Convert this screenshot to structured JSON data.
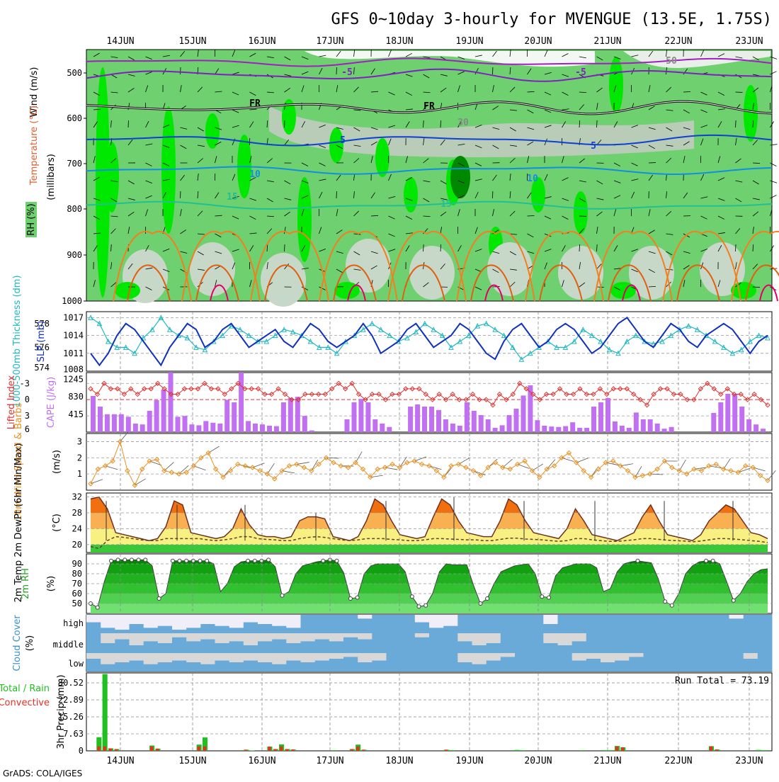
{
  "title": "GFS 0~10day 3-hourly for MVENGUE (13.5E, 1.75S)",
  "footer": "GrADS: COLA/IGES",
  "dates": [
    "14JUN",
    "15JUN",
    "16JUN",
    "17JUN",
    "18JUN",
    "19JUN",
    "20JUN",
    "21JUN",
    "22JUN",
    "23JUN"
  ],
  "colors": {
    "rh_dark": "#00c800",
    "rh_mid": "#6fd06f",
    "rh_light": "#c8d8c8",
    "temp_red": "#e00000",
    "slp": "#1030c0",
    "thick": "#20b8c0",
    "cape": "#c070f0",
    "li": "#e03030",
    "wind10": "#e89020",
    "cloud": "#6aaad8",
    "precip": "#20c020",
    "precip_conv": "#e83020"
  },
  "panels": {
    "upper": {
      "ylabel": "(millibars)",
      "rh_label": "RH (%)",
      "temp_label": "Temperature (°C)",
      "wind_label": "Wind (m/s)",
      "levels": [
        "500",
        "600",
        "700",
        "800",
        "900",
        "1000"
      ],
      "contour_labels": [
        "-5",
        "FR",
        "5",
        "10",
        "15",
        "30",
        "50"
      ]
    },
    "slp": {
      "label_slp": "SLP (mb)",
      "label_thick": "1000-500mb Thickness (dm)",
      "slp_ticks": [
        "1017",
        "1014",
        "1011",
        "1008"
      ],
      "thick_ticks": [
        "578",
        "576",
        "574"
      ]
    },
    "cape": {
      "label_li": "Lifted Index",
      "label_cape": "CAPE (J/kg)",
      "li_ticks": [
        "-3",
        "0",
        "3",
        "6"
      ],
      "cape_ticks": [
        "1245",
        "830",
        "415"
      ]
    },
    "wind": {
      "label": "10m Wind Speed & Barbs",
      "unit": "(m/s)",
      "ticks": [
        "3",
        "2",
        "1"
      ]
    },
    "temp": {
      "label": "2m Temp 2m DewPt (6hr Min/Max)",
      "unit": "(°C)",
      "ticks": [
        "32",
        "28",
        "24",
        "20"
      ]
    },
    "rh": {
      "label": "2m RH",
      "unit": "(%)",
      "ticks": [
        "90",
        "80",
        "70",
        "60",
        "50"
      ]
    },
    "cloud": {
      "label": "Cloud Cover",
      "unit": "(%)",
      "levels": [
        "high",
        "middle",
        "low"
      ]
    },
    "precip": {
      "label_total": "Total / Rain",
      "label_conv": "Convective",
      "ylabel": "3hr Precip (mm)",
      "ticks": [
        "30.52",
        "22.89",
        "15.26",
        "7.63",
        "0"
      ],
      "run_total": "Run Total = 73.19"
    }
  },
  "chart_data": [
    {
      "type": "line",
      "title": "SLP (mb)",
      "ylim": [
        1008,
        1018
      ],
      "series": [
        {
          "name": "SLP (mb)",
          "values": [
            1011,
            1009,
            1011,
            1014,
            1016,
            1015,
            1013,
            1011,
            1009,
            1012,
            1014,
            1016,
            1015,
            1012,
            1013,
            1015,
            1016,
            1014,
            1012,
            1013,
            1014,
            1015,
            1013,
            1012,
            1014,
            1016,
            1015,
            1013,
            1012,
            1013,
            1014,
            1016,
            1014,
            1011,
            1012,
            1013,
            1015,
            1016,
            1014,
            1012,
            1013,
            1014,
            1016,
            1015,
            1013,
            1011,
            1010,
            1013,
            1015,
            1016,
            1014,
            1012,
            1013,
            1015,
            1016,
            1015,
            1013,
            1011,
            1012,
            1014,
            1016,
            1017,
            1015,
            1013,
            1012,
            1014,
            1016,
            1015,
            1013,
            1012,
            1014,
            1015,
            1016,
            1015,
            1013,
            1011,
            1013,
            1014
          ]
        }
      ]
    },
    {
      "type": "line",
      "title": "1000-500mb Thickness (dm)",
      "ylim": [
        574,
        579
      ],
      "series": [
        {
          "name": "Thickness",
          "values": [
            578.5,
            578,
            576.5,
            576,
            576,
            575.5,
            576.8,
            577.5,
            578.5,
            577.5,
            577,
            576.8,
            576,
            575.8,
            576.5,
            577,
            577.8,
            577.5,
            577,
            576.5,
            576.5,
            577,
            577.5,
            577.3,
            577,
            576.5,
            576,
            576,
            575.5,
            576.5,
            577,
            577.5,
            578,
            577.5,
            577,
            576.5,
            576.8,
            577.3,
            578,
            577.5,
            577,
            576,
            576.5,
            577,
            577.8,
            578,
            577.5,
            577,
            576,
            575,
            575.5,
            576,
            576.5,
            576,
            576,
            576.5,
            577.5,
            577,
            576.5,
            575.8,
            575.5,
            576.5,
            577,
            576.5,
            576.3,
            576.5,
            577,
            577.5,
            577.8,
            577.5,
            577,
            576.5,
            576,
            575.5,
            575.8,
            576.5,
            577,
            576.8
          ]
        }
      ]
    },
    {
      "type": "bar",
      "title": "CAPE (J/kg)",
      "ylim": [
        0,
        1400
      ],
      "values": [
        850,
        600,
        420,
        420,
        420,
        360,
        200,
        180,
        500,
        750,
        1000,
        1400,
        360,
        380,
        180,
        160,
        260,
        220,
        200,
        760,
        700,
        1400,
        260,
        200,
        180,
        150,
        140,
        700,
        800,
        830,
        380,
        40,
        0,
        0,
        0,
        0,
        300,
        700,
        780,
        700,
        300,
        200,
        120,
        0,
        0,
        600,
        650,
        600,
        600,
        520,
        300,
        200,
        150,
        700,
        500,
        400,
        300,
        100,
        160,
        400,
        550,
        860,
        1100,
        280,
        150,
        130,
        120,
        140,
        230,
        100,
        100,
        600,
        700,
        800,
        250,
        150,
        100,
        460,
        300,
        300,
        200,
        80,
        120,
        0,
        0,
        0,
        0,
        0,
        450,
        700,
        900,
        900,
        600,
        300,
        180,
        80
      ]
    },
    {
      "type": "line",
      "title": "Lifted Index",
      "ylim": [
        6,
        -5
      ],
      "series": [
        {
          "name": "Lifted Index",
          "values": [
            -2,
            -1,
            -3,
            -2,
            -2,
            -1,
            -2,
            -1,
            -2,
            -2,
            -3,
            -2,
            -1,
            -1,
            -2,
            -2,
            -2,
            -3,
            -2,
            -2,
            -1,
            -2,
            -3,
            -2,
            -2,
            -2,
            -1,
            -1,
            -2,
            -1,
            0,
            0,
            -1,
            -1,
            -1,
            -1,
            -2,
            -3,
            -2,
            -3,
            -1,
            0,
            -1,
            -1,
            0,
            -1,
            -1,
            -2,
            -2,
            -2,
            -1,
            0,
            -1,
            0,
            -1,
            0,
            0,
            -1,
            0,
            0,
            1,
            -1,
            0,
            -1,
            -3,
            -2,
            -1,
            0,
            -1,
            -1,
            -2,
            -1,
            -1,
            -2,
            -1,
            -1,
            -2,
            -1,
            -2,
            -2,
            -2,
            -1,
            0,
            1,
            -1,
            -2,
            -2,
            -1,
            -1,
            0,
            0,
            -2,
            -3,
            -2,
            -1,
            -2,
            -1,
            -1,
            0,
            -1,
            0,
            1
          ]
        }
      ]
    },
    {
      "type": "line",
      "title": "10m Wind Speed (m/s)",
      "ylim": [
        0,
        3.5
      ],
      "series": [
        {
          "name": "10m Wind Speed",
          "values": [
            0.4,
            1.3,
            1.5,
            1.8,
            3.0,
            1.2,
            0.3,
            1.3,
            1.8,
            1.9,
            1.2,
            1.1,
            1.0,
            1.1,
            1.5,
            2.0,
            2.3,
            1.3,
            0.8,
            1.2,
            1.6,
            1.5,
            1.4,
            1.2,
            1.0,
            0.7,
            1.2,
            1.5,
            1.6,
            1.4,
            1.2,
            1.6,
            2.0,
            1.7,
            1.5,
            1.4,
            1.7,
            1.3,
            0.8,
            1.3,
            1.4,
            1.6,
            1.4,
            1.7,
            1.8,
            1.6,
            1.5,
            1.2,
            0.8,
            1.5,
            1.6,
            1.4,
            1.2,
            0.9,
            1.4,
            1.7,
            1.4,
            1.3,
            1.6,
            1.8,
            1.2,
            0.8,
            1.3,
            1.5,
            2.0,
            2.3,
            1.7,
            1.2,
            0.8,
            1.3,
            1.7,
            1.8,
            1.5,
            1.2,
            0.8,
            0.9,
            1.0,
            1.3,
            1.8,
            1.4,
            1.2,
            1.0,
            1.3,
            1.2,
            1.5,
            1.6,
            1.3,
            1.2,
            1.1,
            1.5,
            1.4,
            0.9,
            0.6
          ]
        }
      ]
    },
    {
      "type": "area",
      "title": "2m Temp (°C)",
      "ylim": [
        18,
        33
      ],
      "series": [
        {
          "name": "2m Temp",
          "values": [
            31.5,
            32,
            29,
            23,
            22.5,
            22,
            21.5,
            21,
            21.5,
            24.5,
            31,
            30,
            23,
            22.5,
            22,
            21.5,
            22,
            24,
            29,
            25,
            22.5,
            22,
            22,
            21.5,
            22,
            26,
            27,
            27,
            26.5,
            22,
            21.5,
            21,
            22,
            26,
            31.5,
            30,
            26,
            22.5,
            22,
            21.5,
            22,
            27,
            31.5,
            30,
            26,
            23,
            22.5,
            22,
            22,
            26,
            31.5,
            30,
            26,
            23,
            22.5,
            22,
            21.5,
            24,
            29,
            26,
            22.5,
            22,
            21.5,
            21,
            22,
            23,
            27,
            30,
            26,
            22.5,
            22,
            21.5,
            21,
            22.5,
            26,
            28,
            30,
            29,
            26,
            23,
            22.5,
            21.5
          ]
        },
        {
          "name": "2m DewPt",
          "values": [
            19.5,
            19,
            21,
            22,
            21.8,
            21.5,
            21.2,
            21,
            21,
            21.5,
            21.5,
            21.5,
            21.5,
            21.5,
            21.2,
            21,
            21.2,
            21.5,
            22,
            22,
            21.5,
            21.3,
            21.2,
            21,
            21,
            21.5,
            21.8,
            22,
            21.8,
            21.5,
            21.2,
            21,
            21.2,
            21.5,
            21.5,
            21.5,
            21.3,
            21.2,
            21,
            21,
            21.2,
            21.5,
            21.5,
            21.4,
            21.3,
            21.2,
            21.2,
            21,
            21,
            21.3,
            21.6,
            21.6,
            21.4,
            21.3,
            21.2,
            21,
            20.8,
            21,
            21.5,
            21.5,
            21.2,
            21,
            20.8,
            20.8,
            21,
            21.2,
            21.5,
            21.5,
            21.3,
            21.1,
            21,
            20.9,
            20.7,
            20.9,
            21.2,
            21.5,
            21.5,
            21.4,
            21.2,
            21,
            20.8,
            20.5
          ]
        }
      ]
    },
    {
      "type": "area",
      "title": "2m RH (%)",
      "ylim": [
        40,
        100
      ],
      "series": [
        {
          "name": "2m RH",
          "values": [
            50,
            46,
            72,
            93,
            94,
            94,
            94,
            94,
            94,
            88,
            55,
            60,
            93,
            93,
            93,
            93,
            93,
            93,
            90,
            62,
            70,
            87,
            92,
            93,
            93,
            93,
            94,
            87,
            58,
            62,
            80,
            88,
            90,
            92,
            93,
            94,
            93,
            81,
            55,
            56,
            80,
            88,
            90,
            90,
            90,
            90,
            82,
            57,
            47,
            48,
            60,
            82,
            90,
            89,
            89,
            89,
            68,
            50,
            55,
            70,
            82,
            85,
            88,
            89,
            90,
            80,
            57,
            56,
            78,
            86,
            88,
            90,
            90,
            90,
            86,
            62,
            65,
            82,
            90,
            92,
            93,
            92,
            91,
            75,
            52,
            48,
            60,
            80,
            88,
            92,
            93,
            93,
            90,
            72,
            53,
            60,
            72,
            80,
            84,
            85
          ]
        }
      ]
    },
    {
      "type": "bar",
      "title": "3hr Precip (mm)",
      "ylim": [
        0,
        35
      ],
      "values": [
        0,
        6.1,
        34.5,
        1.1,
        0.8,
        0,
        0,
        0,
        0,
        0,
        2.4,
        1,
        0,
        0,
        0,
        0,
        0,
        0,
        2.8,
        6,
        0,
        0,
        0,
        0,
        0,
        0,
        0.5,
        0.2,
        0,
        0,
        1.9,
        0.8,
        2.9,
        0.8,
        0.6,
        0,
        0,
        0,
        0,
        0,
        0,
        0.3,
        0,
        0,
        0.8,
        2.8,
        0.5,
        0,
        0,
        0,
        0,
        0,
        0,
        0,
        0,
        0,
        0,
        0,
        0,
        0,
        0.5,
        0.3,
        0,
        0,
        0,
        0,
        0,
        0,
        0,
        0,
        0,
        0,
        0.4,
        0.3,
        0,
        0,
        0,
        0,
        0,
        0,
        0,
        0,
        0,
        0.3,
        0,
        0,
        0,
        0.3,
        0.3,
        2.2,
        1.6,
        0,
        0,
        0,
        0,
        0,
        0,
        0,
        0,
        0,
        0,
        0,
        0,
        0,
        0,
        2.1,
        0.6,
        0,
        0,
        0,
        0,
        0,
        0,
        0.4,
        0.3
      ]
    }
  ]
}
